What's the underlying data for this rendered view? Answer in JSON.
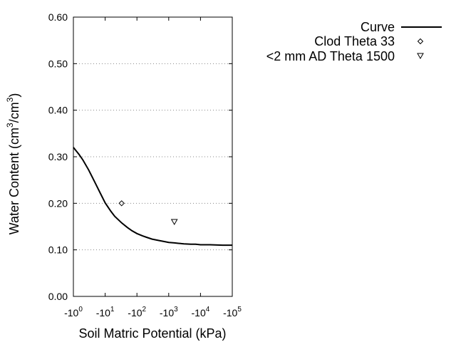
{
  "chart_data": {
    "type": "line",
    "xlabel": "Soil Matric Potential (kPa)",
    "ylabel_main": "Water Content (cm",
    "ylabel_sup1": "3",
    "ylabel_mid": "/cm",
    "ylabel_sup2": "3",
    "ylabel_end": ")",
    "x_scale": "log",
    "xlim": [
      1,
      100000
    ],
    "ylim": [
      0.0,
      0.6
    ],
    "y_ticks": [
      {
        "value": 0.0,
        "label": "0.00"
      },
      {
        "value": 0.1,
        "label": "0.10"
      },
      {
        "value": 0.2,
        "label": "0.20"
      },
      {
        "value": 0.3,
        "label": "0.30"
      },
      {
        "value": 0.4,
        "label": "0.40"
      },
      {
        "value": 0.5,
        "label": "0.50"
      },
      {
        "value": 0.6,
        "label": "0.60"
      }
    ],
    "x_ticks": [
      {
        "value": 1,
        "base": "-10",
        "exp": "0"
      },
      {
        "value": 10,
        "base": "-10",
        "exp": "1"
      },
      {
        "value": 100,
        "base": "-10",
        "exp": "2"
      },
      {
        "value": 1000,
        "base": "-10",
        "exp": "3"
      },
      {
        "value": 10000,
        "base": "-10",
        "exp": "4"
      },
      {
        "value": 100000,
        "base": "-10",
        "exp": "5"
      }
    ],
    "grid": "horizontal dotted",
    "legend_position": "top-right",
    "series": [
      {
        "name": "Curve",
        "kind": "line",
        "color": "#000000",
        "x": [
          1,
          1.5,
          2,
          3,
          5,
          7,
          10,
          15,
          20,
          33,
          50,
          70,
          100,
          150,
          200,
          300,
          500,
          700,
          1000,
          1500,
          2000,
          3000,
          5000,
          7000,
          10000,
          20000,
          50000,
          100000
        ],
        "y": [
          0.32,
          0.305,
          0.293,
          0.272,
          0.242,
          0.222,
          0.201,
          0.183,
          0.172,
          0.158,
          0.148,
          0.141,
          0.135,
          0.13,
          0.127,
          0.123,
          0.12,
          0.118,
          0.116,
          0.115,
          0.114,
          0.113,
          0.112,
          0.112,
          0.111,
          0.111,
          0.11,
          0.11
        ]
      },
      {
        "name": "Clod Theta 33",
        "kind": "scatter",
        "marker": "diamond",
        "x": [
          33
        ],
        "y": [
          0.2
        ]
      },
      {
        "name": "<2 mm AD Theta 1500",
        "kind": "scatter",
        "marker": "triangle-down",
        "x": [
          1500
        ],
        "y": [
          0.16
        ]
      }
    ]
  }
}
